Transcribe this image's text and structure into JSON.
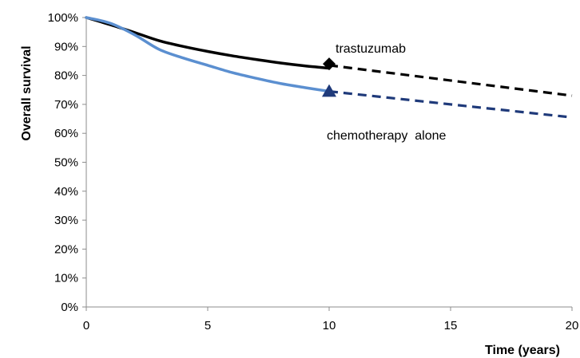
{
  "chart_data": {
    "type": "line",
    "title": "",
    "xlabel": "Time (years)",
    "ylabel": "Overall survival",
    "xlim": [
      0,
      20
    ],
    "ylim": [
      0,
      1
    ],
    "x_ticks": [
      0,
      5,
      10,
      15,
      20
    ],
    "x_tick_labels": [
      "0",
      "5",
      "10",
      "15",
      "20"
    ],
    "y_ticks": [
      0,
      0.1,
      0.2,
      0.3,
      0.4,
      0.5,
      0.6,
      0.7,
      0.8,
      0.9,
      1.0
    ],
    "y_tick_labels": [
      "0%",
      "10%",
      "20%",
      "30%",
      "40%",
      "50%",
      "60%",
      "70%",
      "80%",
      "90%",
      "100%"
    ],
    "grid": false,
    "series": [
      {
        "name": "trastuzumab",
        "color": "#000000",
        "marker": "diamond",
        "observed": {
          "x": [
            0,
            1,
            2,
            3,
            4,
            5,
            6,
            7,
            8,
            9,
            10
          ],
          "y": [
            1.0,
            0.975,
            0.948,
            0.92,
            0.9,
            0.883,
            0.868,
            0.855,
            0.843,
            0.833,
            0.825
          ]
        },
        "projected": {
          "x": [
            10,
            20
          ],
          "y": [
            0.835,
            0.73
          ]
        },
        "marker_point": {
          "x": 10,
          "y": 0.84
        }
      },
      {
        "name": "chemotherapy alone",
        "color": "#5b8fd0",
        "projected_color": "#1f3a7a",
        "marker": "triangle",
        "marker_color": "#1f3a7a",
        "observed": {
          "x": [
            0,
            1,
            2,
            3,
            4,
            5,
            6,
            7,
            8,
            9,
            10
          ],
          "y": [
            1.0,
            0.98,
            0.94,
            0.89,
            0.86,
            0.835,
            0.81,
            0.79,
            0.772,
            0.758,
            0.745
          ]
        },
        "projected": {
          "x": [
            10,
            20
          ],
          "y": [
            0.745,
            0.655
          ]
        },
        "marker_point": {
          "x": 10,
          "y": 0.745
        }
      }
    ],
    "annotations": [
      {
        "text": "trastuzumab",
        "series": "trastuzumab"
      },
      {
        "text": "chemotherapy  alone",
        "series": "chemotherapy alone"
      }
    ]
  }
}
